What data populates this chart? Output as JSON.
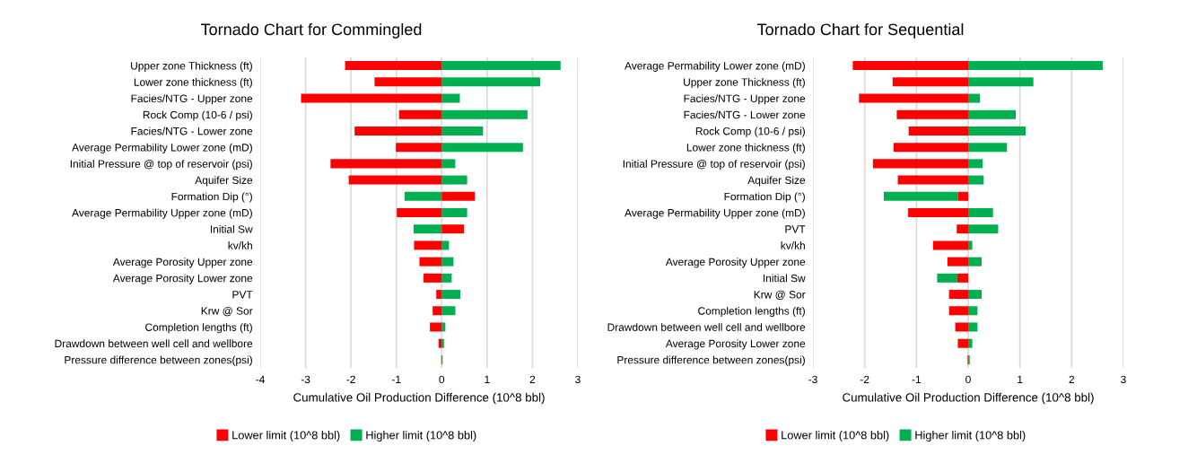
{
  "chart_data": [
    {
      "type": "bar",
      "orientation": "horizontal",
      "title": "Tornado Chart for Commingled",
      "xlabel": "Cumulative Oil Production Difference (10^8 bbl)",
      "categories": [
        "Upper zone Thickness (ft)",
        "Lower zone thickness (ft)",
        "Facies/NTG - Upper zone",
        "Rock Comp (10-6 / psi)",
        "Facies/NTG - Lower zone",
        "Average Permability Lower zone (mD)",
        "Initial Pressure @ top of reservoir (psi)",
        "Aquifer Size",
        "Formation Dip (°)",
        "Average Permability Upper zone (mD)",
        "Initial Sw",
        "kv/kh",
        "Average Porosity Upper zone",
        "Average Porosity Lower zone",
        "PVT",
        "Krw @ Sor",
        "Completion lengths (ft)",
        "Drawdown between well cell and wellbore",
        "Pressure difference between zones(psi)"
      ],
      "series": [
        {
          "name": "Lower limit (10^8 bbl)",
          "color": "#ff0000",
          "values": [
            -2.13,
            -1.48,
            -3.1,
            -0.94,
            -1.92,
            -1.01,
            -2.45,
            -2.05,
            0.73,
            -0.99,
            0.49,
            -0.61,
            -0.49,
            -0.4,
            -0.12,
            -0.2,
            -0.26,
            -0.07,
            -0.01
          ]
        },
        {
          "name": "Higher limit (10^8 bbl)",
          "color": "#00b050",
          "values": [
            2.62,
            2.17,
            0.4,
            1.89,
            0.91,
            1.79,
            0.3,
            0.56,
            -0.82,
            0.56,
            -0.62,
            0.16,
            0.26,
            0.22,
            0.41,
            0.3,
            0.08,
            0.05,
            0.02
          ]
        }
      ],
      "xlim": [
        -4,
        3
      ],
      "xticks": [
        -4,
        -3,
        -2,
        -1,
        0,
        1,
        2,
        3
      ],
      "grid": "x",
      "legend": "bottom",
      "stacked": true
    },
    {
      "type": "bar",
      "orientation": "horizontal",
      "title": "Tornado Chart for Sequential",
      "xlabel": "Cumulative Oil Production Difference (10^8 bbl)",
      "categories": [
        "Average Permability Lower zone (mD)",
        "Upper zone Thickness (ft)",
        "Facies/NTG - Upper zone",
        "Facies/NTG - Lower zone",
        "Rock Comp (10-6 / psi)",
        "Lower zone thickness (ft)",
        "Initial Pressure @ top of reservoir (psi)",
        "Aquifer Size",
        "Formation Dip (°)",
        "Average Permability Upper zone (mD)",
        "PVT",
        "kv/kh",
        "Average Porosity Upper zone",
        "Initial Sw",
        "Krw @ Sor",
        "Completion lengths (ft)",
        "Drawdown between well cell and wellbore",
        "Average Porosity Lower zone",
        "Pressure difference between zones(psi)"
      ],
      "series": [
        {
          "name": "Lower limit (10^8 bbl)",
          "color": "#ff0000",
          "values": [
            -2.23,
            -1.46,
            -2.11,
            -1.38,
            -1.15,
            -1.44,
            -1.84,
            -1.36,
            -0.2,
            -1.16,
            -0.22,
            -0.68,
            -0.4,
            -0.21,
            -0.37,
            -0.37,
            -0.25,
            -0.2,
            -0.01
          ]
        },
        {
          "name": "Higher limit (10^8 bbl)",
          "color": "#00b050",
          "values": [
            2.6,
            1.26,
            0.23,
            0.92,
            1.11,
            0.75,
            0.28,
            0.3,
            -1.43,
            0.48,
            0.58,
            0.08,
            0.26,
            -0.39,
            0.26,
            0.18,
            0.18,
            0.08,
            0.03
          ]
        }
      ],
      "xlim": [
        -3,
        3
      ],
      "xticks": [
        -3,
        -2,
        -1,
        0,
        1,
        2,
        3
      ],
      "grid": "x",
      "legend": "bottom",
      "stacked": true
    }
  ]
}
